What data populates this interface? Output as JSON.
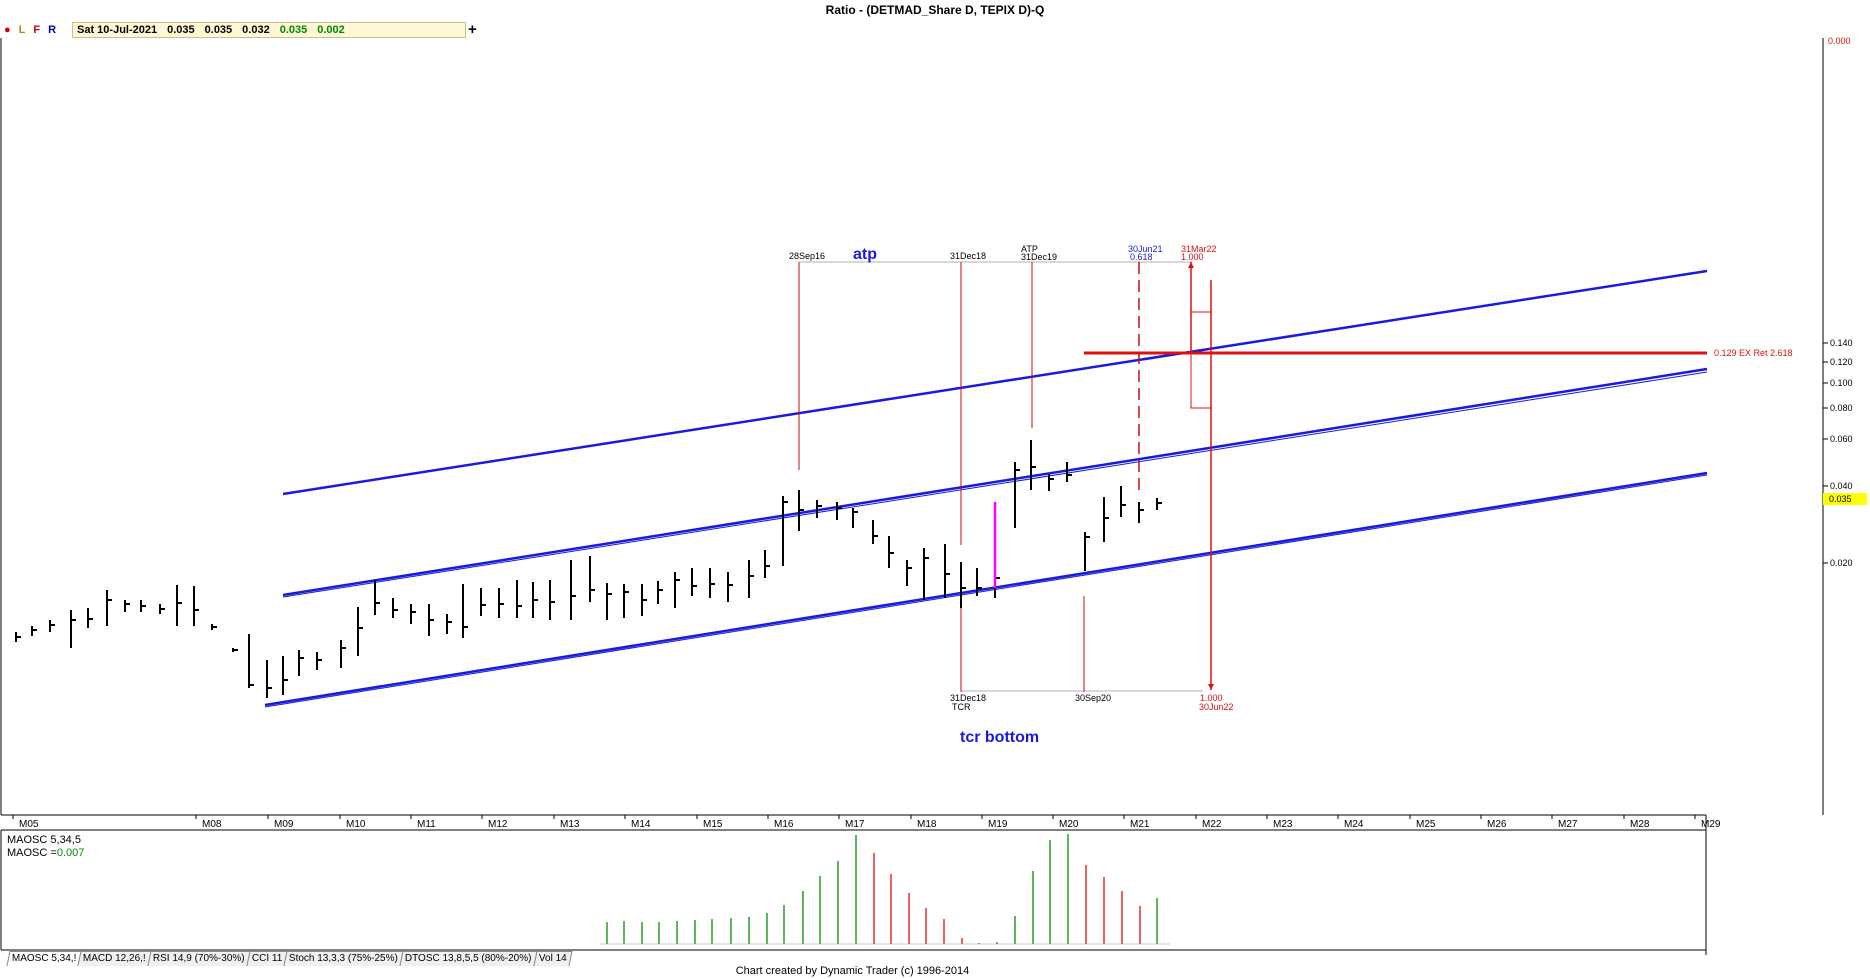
{
  "title": "Ratio - (DETMAD_Share D, TEPIX D)-Q",
  "toolbar": {
    "l": "L",
    "f": "F",
    "r": "R",
    "date": "Sat 10-Jul-2021",
    "open": "0.035",
    "high": "0.035",
    "low": "0.032",
    "close": "0.035",
    "change": "0.002",
    "add": "+"
  },
  "footer": "Chart created by Dynamic Trader  (c)  1996-2014",
  "tabs": [
    "MAOSC 5,34,!",
    "MACD 12,26,!",
    "RSI 14,9 (70%-30%)",
    "CCI 11",
    "Stoch 13,3,3 (75%-25%)",
    "DTOSC 13,8,5,5 (80%-20%)",
    "Vol 14"
  ],
  "oscillator": {
    "name": "MAOSC 5,34,5",
    "label": "MAOSC",
    "value": "0.007"
  },
  "colors": {
    "bars": "#000000",
    "channel": "#1a1adc",
    "projection": "#e01010",
    "osc_up": "#2a9a2a",
    "osc_down": "#e03030",
    "highlight": "#ff00ff",
    "price_tag": "#ffff00"
  },
  "chart_data": {
    "type": "bar",
    "x_ticks": [
      "M05",
      "M08",
      "M09",
      "M10",
      "M11",
      "M12",
      "M13",
      "M14",
      "M15",
      "M16",
      "M17",
      "M18",
      "M19",
      "M20",
      "M21",
      "M22",
      "M23",
      "M24",
      "M25",
      "M26",
      "M27",
      "M28",
      "M29"
    ],
    "y_ticks": [
      "0.140",
      "0.120",
      "0.100",
      "0.080",
      "0.060",
      "0.040",
      "0.020",
      "0.000"
    ],
    "y_scale": "log",
    "last_price": "0.035",
    "annotations": {
      "atp_label": "atp",
      "tcr_label": "tcr bottom",
      "top_dates": [
        "28Sep16",
        "31Dec18",
        "ATP",
        "31Dec19",
        "30Jun21",
        "0.618",
        "31Mar22",
        "1.000"
      ],
      "bottom_dates": [
        "31Dec18",
        "TCR",
        "30Sep20",
        "1.000",
        "30Jun22"
      ],
      "hline_label": "0.129 EX Ret 2.618"
    }
  }
}
